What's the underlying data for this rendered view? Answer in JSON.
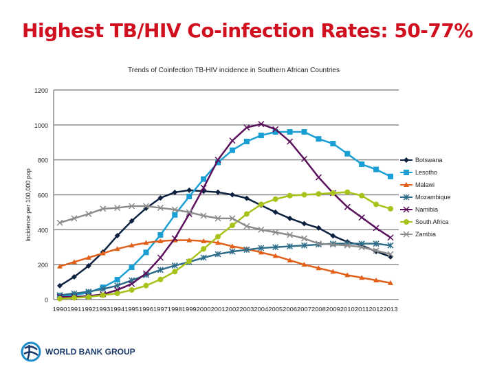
{
  "slide_title": "Highest TB/HIV Co-infection Rates: 50-77%",
  "logo_text": "WORLD BANK GROUP",
  "chart_data": {
    "type": "line",
    "title": "Trends of Coinfection TB-HIV incidence in Southern African Countries",
    "xlabel": "",
    "ylabel": "Incidence per 100,000 pop",
    "ylim": [
      0,
      1200
    ],
    "yticks": [
      0,
      200,
      400,
      600,
      800,
      1000,
      1200
    ],
    "grid": true,
    "legend": "right",
    "categories": [
      "1990",
      "1991",
      "1992",
      "1993",
      "1994",
      "1995",
      "1996",
      "1997",
      "1998",
      "1999",
      "2000",
      "2001",
      "2002",
      "2003",
      "2004",
      "2005",
      "2006",
      "2007",
      "2008",
      "2009",
      "2010",
      "2011",
      "2012",
      "2013"
    ],
    "series": [
      {
        "name": "Botswana",
        "color": "#0d2240",
        "marker": "diamond",
        "values": [
          79,
          130,
          193,
          272,
          366,
          450,
          523,
          582,
          614,
          626,
          620,
          615,
          600,
          580,
          540,
          500,
          465,
          435,
          410,
          365,
          330,
          310,
          275,
          245
        ]
      },
      {
        "name": "Lesotho",
        "color": "#1a9fd4",
        "marker": "square",
        "values": [
          20,
          25,
          40,
          70,
          114,
          185,
          270,
          370,
          485,
          590,
          690,
          785,
          855,
          905,
          940,
          960,
          960,
          960,
          920,
          893,
          835,
          775,
          745,
          705
        ]
      },
      {
        "name": "Malawi",
        "color": "#e0601a",
        "marker": "triangle",
        "values": [
          190,
          215,
          240,
          265,
          290,
          310,
          325,
          335,
          340,
          340,
          335,
          325,
          305,
          290,
          270,
          250,
          225,
          200,
          180,
          160,
          140,
          125,
          110,
          95
        ]
      },
      {
        "name": "Mozambique",
        "color": "#2f6e8a",
        "marker": "star",
        "values": [
          25,
          35,
          45,
          60,
          80,
          110,
          140,
          170,
          195,
          215,
          240,
          260,
          275,
          285,
          295,
          300,
          305,
          310,
          315,
          320,
          320,
          320,
          320,
          310
        ]
      },
      {
        "name": "Namibia",
        "color": "#5a0f5a",
        "marker": "x",
        "values": [
          15,
          15,
          20,
          30,
          55,
          90,
          150,
          240,
          350,
          490,
          640,
          800,
          910,
          985,
          1005,
          975,
          905,
          805,
          700,
          610,
          530,
          470,
          410,
          355
        ]
      },
      {
        "name": "South Africa",
        "color": "#a8c21a",
        "marker": "circle",
        "values": [
          5,
          10,
          15,
          25,
          35,
          55,
          80,
          115,
          160,
          220,
          290,
          360,
          425,
          490,
          545,
          575,
          595,
          600,
          605,
          610,
          615,
          595,
          545,
          520
        ]
      },
      {
        "name": "Zambia",
        "color": "#8c8c8c",
        "marker": "x",
        "values": [
          440,
          465,
          490,
          520,
          525,
          535,
          535,
          525,
          515,
          500,
          480,
          465,
          465,
          420,
          400,
          385,
          370,
          350,
          320,
          315,
          310,
          300,
          280,
          260
        ]
      }
    ]
  }
}
